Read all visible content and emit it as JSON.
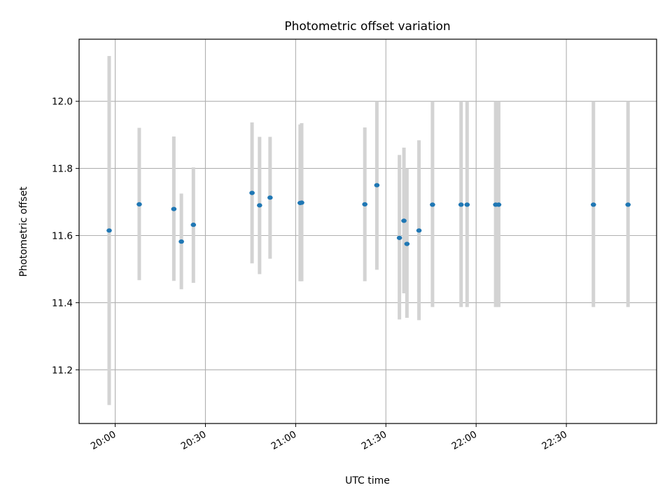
{
  "chart_data": {
    "type": "scatter",
    "title": "Photometric offset variation",
    "xlabel": "UTC time",
    "ylabel": "Photometric offset",
    "xlim": [
      "19:48",
      "23:00"
    ],
    "ylim": [
      11.04,
      12.185
    ],
    "xticks": [
      "20:00",
      "20:30",
      "21:00",
      "21:30",
      "22:00",
      "22:30"
    ],
    "yticks": [
      11.2,
      11.4,
      11.6,
      11.8,
      12.0
    ],
    "grid": true,
    "colors": {
      "marker": "#1f77b4",
      "errorbar": "#d3d3d3",
      "grid": "#b0b0b0"
    },
    "points": [
      {
        "x": "19:58",
        "y": 11.615,
        "low": 11.095,
        "high": 12.135
      },
      {
        "x": "20:08",
        "y": 11.693,
        "low": 11.467,
        "high": 11.921
      },
      {
        "x": "20:19.5",
        "y": 11.679,
        "low": 11.465,
        "high": 11.895
      },
      {
        "x": "20:22",
        "y": 11.582,
        "low": 11.44,
        "high": 11.725
      },
      {
        "x": "20:26",
        "y": 11.632,
        "low": 11.459,
        "high": 11.803
      },
      {
        "x": "20:45.5",
        "y": 11.727,
        "low": 11.517,
        "high": 11.937
      },
      {
        "x": "20:48",
        "y": 11.69,
        "low": 11.485,
        "high": 11.894
      },
      {
        "x": "20:51.5",
        "y": 11.713,
        "low": 11.531,
        "high": 11.894
      },
      {
        "x": "21:01.5",
        "y": 11.697,
        "low": 11.464,
        "high": 11.931
      },
      {
        "x": "21:02",
        "y": 11.698,
        "low": 11.464,
        "high": 11.935
      },
      {
        "x": "21:23",
        "y": 11.693,
        "low": 11.464,
        "high": 11.922
      },
      {
        "x": "21:27",
        "y": 11.75,
        "low": 11.498,
        "high": 12.0
      },
      {
        "x": "21:34.5",
        "y": 11.593,
        "low": 11.35,
        "high": 11.84
      },
      {
        "x": "21:36",
        "y": 11.644,
        "low": 11.428,
        "high": 11.862
      },
      {
        "x": "21:37",
        "y": 11.575,
        "low": 11.355,
        "high": 11.8
      },
      {
        "x": "21:41",
        "y": 11.615,
        "low": 11.348,
        "high": 11.884
      },
      {
        "x": "21:45.5",
        "y": 11.692,
        "low": 11.387,
        "high": 12.0
      },
      {
        "x": "21:55",
        "y": 11.692,
        "low": 11.387,
        "high": 12.0
      },
      {
        "x": "21:57",
        "y": 11.692,
        "low": 11.387,
        "high": 12.0
      },
      {
        "x": "22:06.5",
        "y": 11.692,
        "low": 11.387,
        "high": 12.0
      },
      {
        "x": "22:07.5",
        "y": 11.692,
        "low": 11.387,
        "high": 12.0
      },
      {
        "x": "22:39",
        "y": 11.692,
        "low": 11.387,
        "high": 12.0
      },
      {
        "x": "22:50.5",
        "y": 11.692,
        "low": 11.387,
        "high": 12.0
      }
    ]
  }
}
